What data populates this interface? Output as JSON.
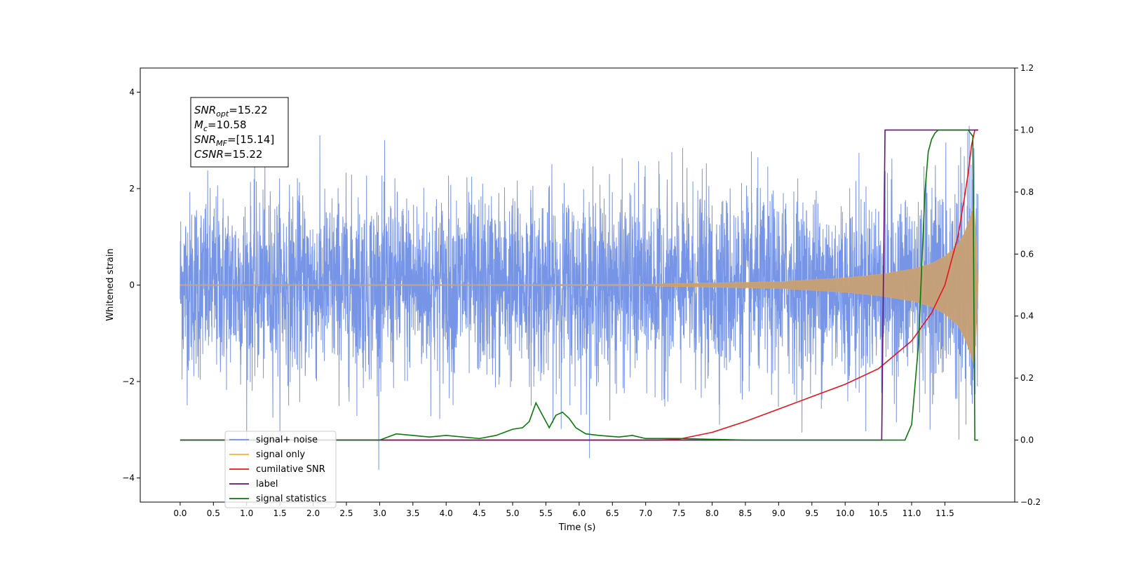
{
  "chart_data": {
    "type": "line",
    "xlabel": "Time (s)",
    "ylabel": "Whitened strain",
    "xlim": [
      -0.6,
      12.55
    ],
    "ylim": [
      -4.5,
      4.5
    ],
    "y2lim": [
      -0.2,
      1.2
    ],
    "x_ticks": [
      0.0,
      0.5,
      1.0,
      1.5,
      2.0,
      2.5,
      3.0,
      3.5,
      4.0,
      4.5,
      5.0,
      5.5,
      6.0,
      6.5,
      7.0,
      7.5,
      8.0,
      8.5,
      9.0,
      9.5,
      10.0,
      10.5,
      11.0,
      11.5
    ],
    "x_tick_labels": [
      "0.0",
      "0.5",
      "1.0",
      "1.5",
      "2.0",
      "2.5",
      "3.0",
      "3.5",
      "4.0",
      "4.5",
      "5.0",
      "5.5",
      "6.0",
      "6.5",
      "7.0",
      "7.5",
      "8.0",
      "8.5",
      "9.0",
      "9.5",
      "10.0",
      "10.5",
      "11.0",
      "11.5"
    ],
    "y_ticks": [
      -4,
      -2,
      0,
      2,
      4
    ],
    "y_tick_labels": [
      "−4",
      "−2",
      "0",
      "2",
      "4"
    ],
    "y2_ticks": [
      -0.2,
      0.0,
      0.2,
      0.4,
      0.6,
      0.8,
      1.0,
      1.2
    ],
    "y2_tick_labels": [
      "−0.2",
      "0.0",
      "0.2",
      "0.4",
      "0.6",
      "0.8",
      "1.0",
      "1.2"
    ],
    "legend_position": "lower-left",
    "series": [
      {
        "name": "signal+ noise",
        "axis": "left",
        "color": "#6f8fe6",
        "description": "noise, std about 1.0, range -4.1 to 4.1 over t = 0 to 12; signal chirp added",
        "t_start": 0.0,
        "t_end": 12.0
      },
      {
        "name": "signal only",
        "axis": "left",
        "color": "#f5b043",
        "amplitude_envelope": {
          "t": [
            0.0,
            7.0,
            9.0,
            10.0,
            10.5,
            11.0,
            11.3,
            11.5,
            11.7,
            11.8,
            11.9,
            11.95,
            12.0
          ],
          "a": [
            0.0,
            0.02,
            0.07,
            0.15,
            0.22,
            0.33,
            0.45,
            0.6,
            0.85,
            1.1,
            1.5,
            1.7,
            0.0
          ]
        }
      },
      {
        "name": "cumilative SNR",
        "axis": "right",
        "color": "#e8141c",
        "x": [
          0.0,
          7.2,
          7.5,
          8.0,
          8.5,
          9.0,
          9.5,
          10.0,
          10.5,
          11.0,
          11.3,
          11.5,
          11.7,
          11.8,
          11.85,
          11.9,
          11.95,
          12.0
        ],
        "y": [
          0.0,
          0.0,
          0.003,
          0.025,
          0.06,
          0.1,
          0.14,
          0.18,
          0.23,
          0.32,
          0.41,
          0.5,
          0.66,
          0.79,
          0.86,
          0.95,
          1.0,
          1.0
        ]
      },
      {
        "name": "label",
        "axis": "right",
        "color": "#6a0f7f",
        "x": [
          0.0,
          10.55,
          10.6,
          11.9,
          11.91,
          12.0
        ],
        "y": [
          0.0,
          0.0,
          1.0,
          1.0,
          1.0,
          1.0
        ]
      },
      {
        "name": "signal statistics",
        "axis": "right",
        "color": "#0a7a0a",
        "x": [
          0.0,
          3.0,
          3.25,
          3.5,
          3.75,
          4.0,
          4.5,
          4.75,
          5.0,
          5.15,
          5.25,
          5.35,
          5.45,
          5.55,
          5.65,
          5.75,
          5.85,
          5.95,
          6.1,
          6.3,
          6.6,
          6.8,
          7.0,
          7.5,
          8.5,
          10.0,
          10.5,
          10.9,
          11.0,
          11.1,
          11.2,
          11.25,
          11.3,
          11.35,
          11.4,
          11.85,
          11.92,
          11.95,
          12.0
        ],
        "y": [
          0.0,
          0.0,
          0.02,
          0.015,
          0.01,
          0.015,
          0.005,
          0.015,
          0.035,
          0.04,
          0.06,
          0.12,
          0.08,
          0.04,
          0.08,
          0.09,
          0.07,
          0.04,
          0.02,
          0.015,
          0.01,
          0.015,
          0.005,
          0.005,
          0.0,
          0.0,
          0.0,
          0.0,
          0.05,
          0.3,
          0.8,
          0.93,
          0.97,
          0.99,
          1.0,
          1.0,
          0.98,
          0.0,
          0.0
        ]
      }
    ],
    "annotations": [
      {
        "symbol": "SNR",
        "subscript": "opt",
        "value": "=15.22"
      },
      {
        "symbol": "M",
        "subscript": "c",
        "value": "=10.58"
      },
      {
        "symbol": "SNR",
        "subscript": "MF",
        "value": "=[15.14]"
      },
      {
        "symbol": "CSNR",
        "subscript": "",
        "value": "=15.22"
      }
    ]
  }
}
